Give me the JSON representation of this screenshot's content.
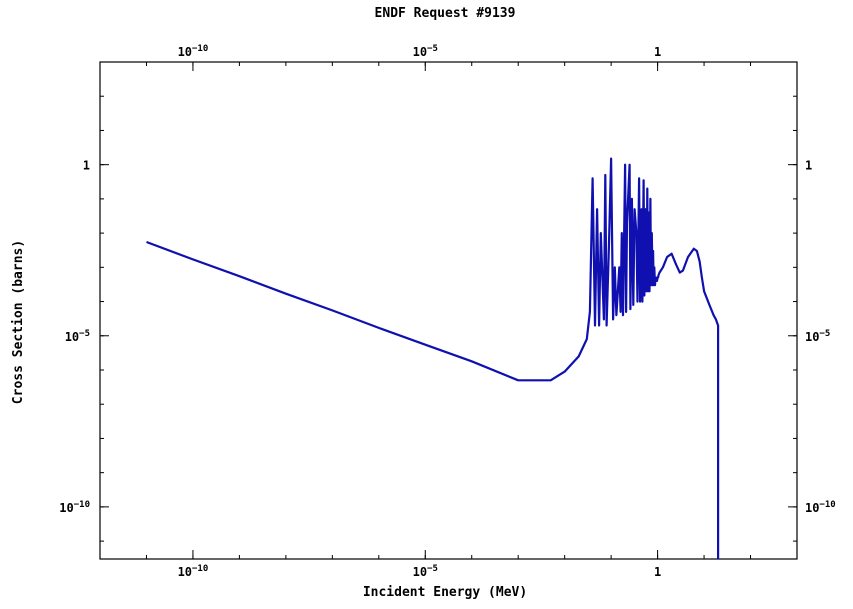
{
  "chart_data": {
    "type": "line",
    "title": "ENDF Request #9139",
    "xlabel": "Incident Energy (MeV)",
    "ylabel": "Cross Section (barns)",
    "x_scale": "log",
    "y_scale": "log",
    "xlim": [
      1e-12,
      1000
    ],
    "ylim": [
      3e-12,
      1000
    ],
    "grid": false,
    "legend": "none",
    "x_ticks": [
      {
        "value": 1e-10,
        "base": "10",
        "exp": "−10"
      },
      {
        "value": 1e-05,
        "base": "10",
        "exp": "−5"
      },
      {
        "value": 1,
        "base": "1",
        "exp": ""
      }
    ],
    "y_ticks": [
      {
        "value": 1e-10,
        "base": "10",
        "exp": "−10"
      },
      {
        "value": 1e-05,
        "base": "10",
        "exp": "−5"
      },
      {
        "value": 1,
        "base": "1",
        "exp": ""
      }
    ],
    "series": [
      {
        "color": "#1010b0",
        "x": [
          1e-11,
          1e-10,
          1e-09,
          1e-08,
          1e-07,
          1e-06,
          1e-05,
          0.0001,
          0.001,
          0.005,
          0.01,
          0.02,
          0.03,
          0.035,
          0.04,
          0.045,
          0.05,
          0.055,
          0.06,
          0.07,
          0.075,
          0.08,
          0.09,
          0.1,
          0.11,
          0.12,
          0.13,
          0.15,
          0.16,
          0.17,
          0.18,
          0.2,
          0.21,
          0.22,
          0.25,
          0.26,
          0.28,
          0.3,
          0.32,
          0.35,
          0.37,
          0.4,
          0.42,
          0.45,
          0.47,
          0.5,
          0.52,
          0.55,
          0.58,
          0.6,
          0.62,
          0.65,
          0.67,
          0.7,
          0.72,
          0.75,
          0.78,
          0.8,
          0.82,
          0.85,
          0.88,
          0.9,
          0.93,
          0.95,
          0.97,
          1.0,
          1.02,
          1.05,
          1.1,
          1.3,
          1.6,
          2.0,
          2.5,
          3.0,
          3.5,
          4.5,
          6.0,
          7.0,
          8.0,
          9.0,
          10.0,
          13.0,
          16.0,
          18.0,
          20.0,
          20.0
        ],
        "y": [
          0.0055,
          0.0017,
          0.00055,
          0.00017,
          5.5e-05,
          1.7e-05,
          5.5e-06,
          1.8e-06,
          5e-07,
          5e-07,
          9e-07,
          2.5e-06,
          8e-06,
          5e-05,
          0.4,
          2e-05,
          0.05,
          2e-05,
          0.01,
          3e-05,
          0.5,
          2e-05,
          0.005,
          1.5,
          3e-05,
          0.001,
          4e-05,
          0.001,
          5e-05,
          0.01,
          4e-05,
          1.0,
          5e-05,
          0.02,
          1.0,
          6e-05,
          0.1,
          8e-05,
          0.05,
          0.01,
          0.0001,
          0.4,
          0.0001,
          0.05,
          0.0001,
          0.35,
          0.00015,
          0.05,
          0.0002,
          0.2,
          0.0002,
          0.04,
          0.0002,
          0.1,
          0.0003,
          0.01,
          0.0003,
          0.003,
          0.0003,
          0.001,
          0.0003,
          0.0005,
          0.0004,
          0.0005,
          0.0004,
          0.0005,
          0.0005,
          0.0006,
          0.0007,
          0.001,
          0.002,
          0.0025,
          0.0012,
          0.0007,
          0.0008,
          0.002,
          0.0035,
          0.003,
          0.0015,
          0.0005,
          0.0002,
          8e-05,
          4e-05,
          3e-05,
          2e-05,
          3e-12
        ]
      }
    ]
  }
}
